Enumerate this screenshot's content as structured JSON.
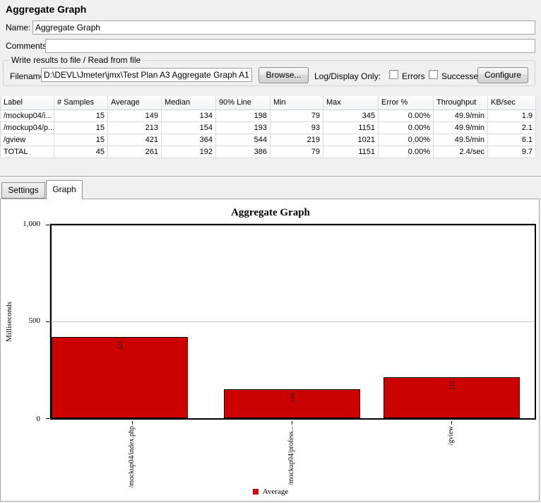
{
  "header": {
    "title": "Aggregate Graph"
  },
  "name_field": {
    "label": "Name:",
    "value": "Aggregate Graph"
  },
  "comments_field": {
    "label": "Comments:",
    "value": ""
  },
  "file_group": {
    "title": "Write results to file / Read from file",
    "filename_label": "Filename",
    "filename_value": "D:\\DEVL\\Jmeter\\jmx\\Test Plan A3 Aggregate Graph A1.jmx",
    "browse_button": "Browse...",
    "log_display_label": "Log/Display Only:",
    "errors_checkbox_label": "Errors",
    "successes_checkbox_label": "Successes",
    "configure_button": "Configure"
  },
  "table": {
    "columns": [
      "Label",
      "# Samples",
      "Average",
      "Median",
      "90% Line",
      "Min",
      "Max",
      "Error %",
      "Throughput",
      "KB/sec"
    ],
    "rows": [
      [
        "/mockup04/i...",
        "15",
        "149",
        "134",
        "198",
        "79",
        "345",
        "0.00%",
        "49.9/min",
        "1.9"
      ],
      [
        "/mockup04/p...",
        "15",
        "213",
        "154",
        "193",
        "93",
        "1151",
        "0.00%",
        "49.9/min",
        "2.1"
      ],
      [
        "/gview",
        "15",
        "421",
        "364",
        "544",
        "219",
        "1021",
        "0.00%",
        "49.5/min",
        "6.1"
      ],
      [
        "TOTAL",
        "45",
        "261",
        "192",
        "386",
        "79",
        "1151",
        "0.00%",
        "2.4/sec",
        "9.7"
      ]
    ]
  },
  "tabs": {
    "settings": "Settings",
    "graph": "Graph"
  },
  "chart_data": {
    "type": "bar",
    "title": "Aggregate Graph",
    "categories": [
      "/mockup04/index.php",
      "/mockup04/profess...",
      "/gview"
    ],
    "series": [
      {
        "name": "Average",
        "values": [
          149,
          213,
          421
        ]
      }
    ],
    "xlabel": "",
    "ylabel": "Milliseconds",
    "ylim": [
      0,
      1000
    ],
    "yticks": [
      0,
      500,
      1000
    ],
    "ytick_labels": [
      "0",
      "500",
      "1,000"
    ],
    "bar_color": "#cc0101",
    "grid": true,
    "legend_position": "bottom"
  }
}
